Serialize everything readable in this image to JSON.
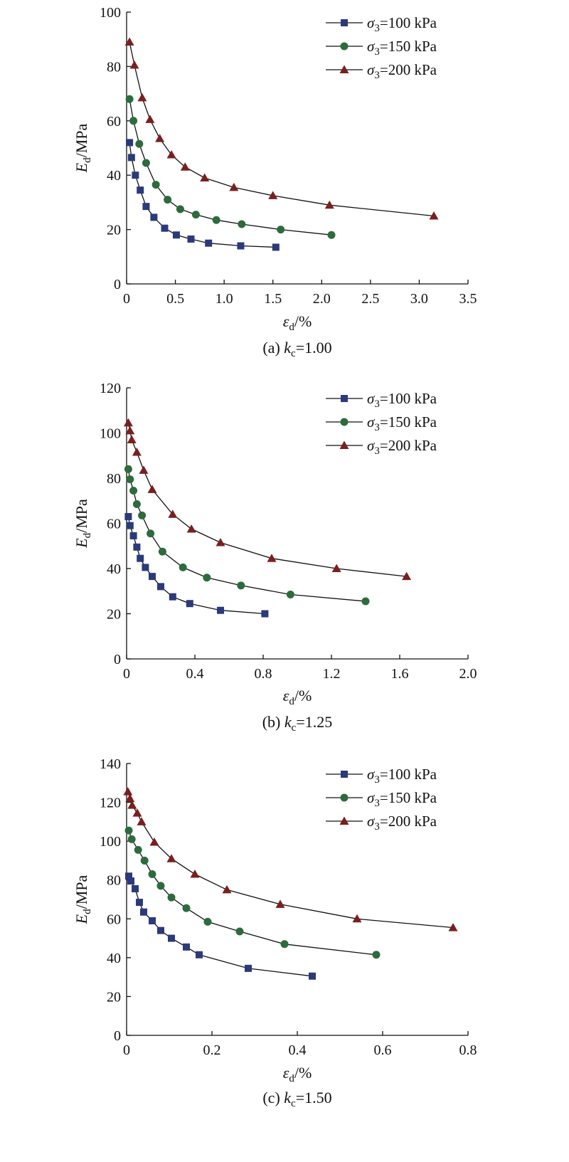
{
  "chart_data": [
    {
      "type": "line",
      "caption": {
        "prefix": "(a) ",
        "k": "k",
        "sub": "c",
        "rest": "=1.00"
      },
      "ylabel": {
        "main": "E",
        "sub": "d",
        "unit": "/MPa"
      },
      "xlabel": {
        "main": "ε",
        "sub": "d",
        "unit": "/%"
      },
      "xlim": [
        0,
        3.5
      ],
      "ylim": [
        0,
        100
      ],
      "xticks": [
        "0",
        "0.5",
        "1.0",
        "1.5",
        "2.0",
        "2.5",
        "3.0",
        "3.5"
      ],
      "yticks": [
        "0",
        "20",
        "40",
        "60",
        "80",
        "100"
      ],
      "grid": false,
      "legend_position": "top-right",
      "series": [
        {
          "name": {
            "sym": "σ",
            "sub": "3",
            "rest": "=100 kPa"
          },
          "marker": "square",
          "color": "#2b3a7a",
          "x": [
            0.03,
            0.05,
            0.09,
            0.14,
            0.2,
            0.28,
            0.39,
            0.51,
            0.66,
            0.84,
            1.17,
            1.53
          ],
          "y": [
            52,
            46.5,
            40,
            34.5,
            28.5,
            24.5,
            20.5,
            18,
            16.5,
            15,
            14,
            13.5
          ]
        },
        {
          "name": {
            "sym": "σ",
            "sub": "3",
            "rest": "=150 kPa"
          },
          "marker": "circle",
          "color": "#2d6b3c",
          "x": [
            0.03,
            0.07,
            0.13,
            0.2,
            0.3,
            0.42,
            0.55,
            0.71,
            0.92,
            1.18,
            1.58,
            2.1
          ],
          "y": [
            68,
            60,
            51.5,
            44.5,
            36.5,
            31,
            27.5,
            25.5,
            23.5,
            22,
            20,
            18
          ]
        },
        {
          "name": {
            "sym": "σ",
            "sub": "3",
            "rest": "=200 kPa"
          },
          "marker": "triangle",
          "color": "#7a1f1f",
          "x": [
            0.03,
            0.08,
            0.16,
            0.24,
            0.34,
            0.46,
            0.6,
            0.8,
            1.1,
            1.5,
            2.08,
            3.15
          ],
          "y": [
            89,
            80.5,
            68.5,
            60.5,
            53.5,
            47.5,
            43,
            39,
            35.5,
            32.5,
            29,
            25
          ]
        }
      ]
    },
    {
      "type": "line",
      "caption": {
        "prefix": "(b) ",
        "k": "k",
        "sub": "c",
        "rest": "=1.25"
      },
      "ylabel": {
        "main": "E",
        "sub": "d",
        "unit": "/MPa"
      },
      "xlabel": {
        "main": "ε",
        "sub": "d",
        "unit": "/%"
      },
      "xlim": [
        0,
        2.0
      ],
      "ylim": [
        0,
        120
      ],
      "xticks": [
        "0",
        "0.4",
        "0.8",
        "1.2",
        "1.6",
        "2.0"
      ],
      "yticks": [
        "0",
        "20",
        "40",
        "60",
        "80",
        "100",
        "120"
      ],
      "grid": false,
      "legend_position": "top-right",
      "series": [
        {
          "name": {
            "sym": "σ",
            "sub": "3",
            "rest": "=100 kPa"
          },
          "marker": "square",
          "color": "#2b3a7a",
          "x": [
            0.01,
            0.02,
            0.04,
            0.06,
            0.08,
            0.11,
            0.15,
            0.2,
            0.27,
            0.37,
            0.55,
            0.81
          ],
          "y": [
            63,
            59,
            54.5,
            49.5,
            44.5,
            40.5,
            36.5,
            32,
            27.5,
            24.5,
            21.5,
            20
          ]
        },
        {
          "name": {
            "sym": "σ",
            "sub": "3",
            "rest": "=150 kPa"
          },
          "marker": "circle",
          "color": "#2d6b3c",
          "x": [
            0.01,
            0.02,
            0.04,
            0.06,
            0.09,
            0.14,
            0.21,
            0.33,
            0.47,
            0.67,
            0.96,
            1.4
          ],
          "y": [
            84,
            79.5,
            74.5,
            68.5,
            63.5,
            55.5,
            47.5,
            40.5,
            36,
            32.5,
            28.5,
            25.5
          ]
        },
        {
          "name": {
            "sym": "σ",
            "sub": "3",
            "rest": "=200 kPa"
          },
          "marker": "triangle",
          "color": "#7a1f1f",
          "x": [
            0.01,
            0.02,
            0.03,
            0.06,
            0.1,
            0.15,
            0.27,
            0.38,
            0.55,
            0.85,
            1.23,
            1.64
          ],
          "y": [
            104.5,
            101,
            97,
            91.5,
            83.5,
            75,
            64,
            57.5,
            51.5,
            44.5,
            40,
            36.5
          ]
        }
      ]
    },
    {
      "type": "line",
      "caption": {
        "prefix": "(c) ",
        "k": "k",
        "sub": "c",
        "rest": "=1.50"
      },
      "ylabel": {
        "main": "E",
        "sub": "d",
        "unit": "/MPa"
      },
      "xlabel": {
        "main": "ε",
        "sub": "d",
        "unit": "/%"
      },
      "xlim": [
        0,
        0.8
      ],
      "ylim": [
        0,
        140
      ],
      "xticks": [
        "0",
        "0.2",
        "0.4",
        "0.6",
        "0.8"
      ],
      "yticks": [
        "0",
        "20",
        "40",
        "60",
        "80",
        "100",
        "120",
        "140"
      ],
      "grid": false,
      "legend_position": "top-right",
      "series": [
        {
          "name": {
            "sym": "σ",
            "sub": "3",
            "rest": "=100 kPa"
          },
          "marker": "square",
          "color": "#2b3a7a",
          "x": [
            0.005,
            0.01,
            0.02,
            0.03,
            0.04,
            0.06,
            0.08,
            0.105,
            0.14,
            0.17,
            0.285,
            0.435
          ],
          "y": [
            82,
            79.5,
            75.5,
            68.5,
            63.5,
            59,
            54,
            50,
            45.5,
            41.5,
            34.5,
            30.5
          ]
        },
        {
          "name": {
            "sym": "σ",
            "sub": "3",
            "rest": "=150 kPa"
          },
          "marker": "circle",
          "color": "#2d6b3c",
          "x": [
            0.005,
            0.012,
            0.027,
            0.042,
            0.06,
            0.08,
            0.105,
            0.14,
            0.19,
            0.265,
            0.37,
            0.585
          ],
          "y": [
            105.5,
            101,
            95.5,
            90,
            83,
            77,
            71,
            65.5,
            58.5,
            53.5,
            47,
            41.5
          ]
        },
        {
          "name": {
            "sym": "σ",
            "sub": "3",
            "rest": "=200 kPa"
          },
          "marker": "triangle",
          "color": "#7a1f1f",
          "x": [
            0.003,
            0.008,
            0.013,
            0.025,
            0.035,
            0.065,
            0.105,
            0.16,
            0.235,
            0.36,
            0.54,
            0.765
          ],
          "y": [
            125.5,
            122,
            118.5,
            114.5,
            110,
            99.5,
            91,
            83,
            75,
            67.5,
            60,
            55.5
          ]
        }
      ]
    }
  ]
}
